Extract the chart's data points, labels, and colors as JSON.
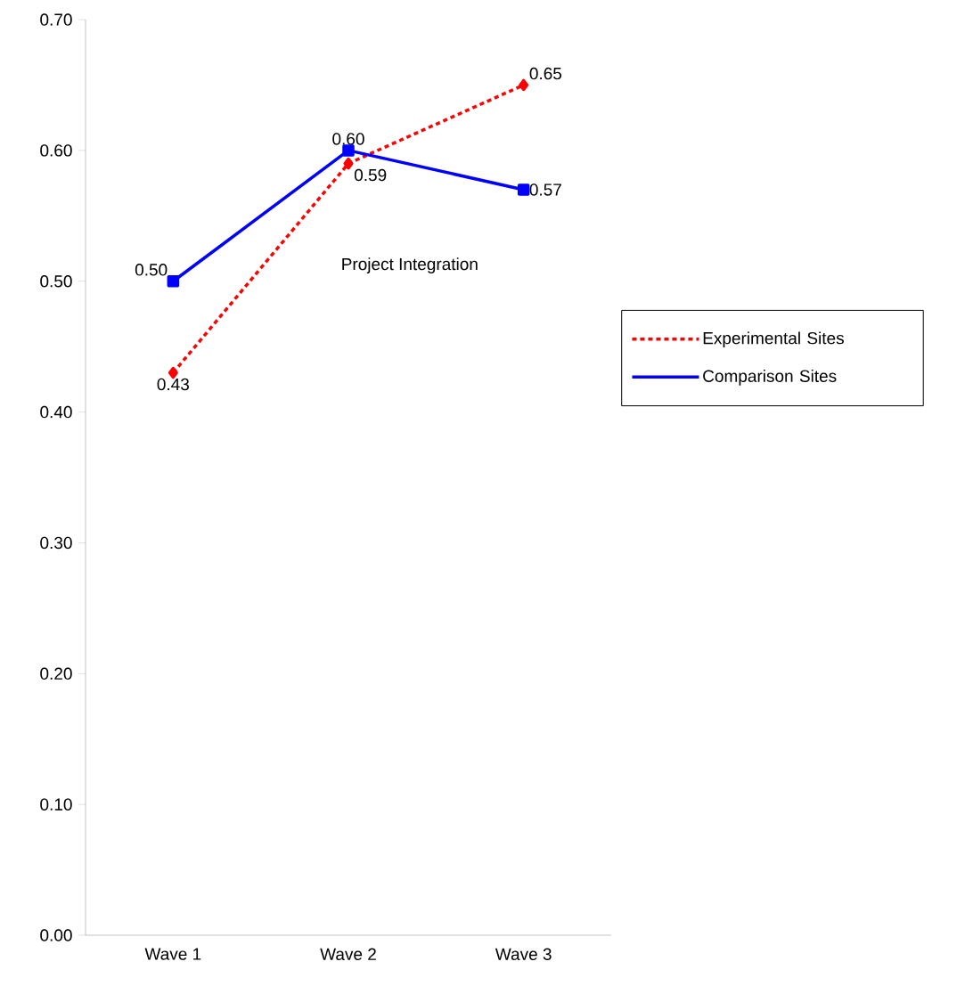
{
  "chart_data": {
    "type": "line",
    "title": "Project Integration",
    "categories": [
      "Wave 1",
      "Wave 2",
      "Wave 3"
    ],
    "series": [
      {
        "name": "Experimental Sites",
        "color": "#ff0000",
        "values": [
          0.43,
          0.59,
          0.65
        ],
        "value_labels": [
          "0.43",
          "0.59",
          "0.65"
        ],
        "marker": "diamond",
        "line_style": "dotted"
      },
      {
        "name": "Comparison Sites",
        "color": "#0000ff",
        "values": [
          0.5,
          0.6,
          0.57
        ],
        "value_labels": [
          "0.50",
          "0.60",
          "0.57"
        ],
        "marker": "square",
        "line_style": "solid"
      }
    ],
    "ylim": [
      0,
      0.7
    ],
    "yticks": [
      {
        "value": 0,
        "label": "0.00"
      },
      {
        "value": 0.1,
        "label": "0.10"
      },
      {
        "value": 0.2,
        "label": "0.20"
      },
      {
        "value": 0.3,
        "label": "0.30"
      },
      {
        "value": 0.4,
        "label": "0.40"
      },
      {
        "value": 0.5,
        "label": "0.50"
      },
      {
        "value": 0.6,
        "label": "0.60"
      },
      {
        "value": 0.7,
        "label": "0.70"
      }
    ],
    "grid": false,
    "legend": "right"
  }
}
